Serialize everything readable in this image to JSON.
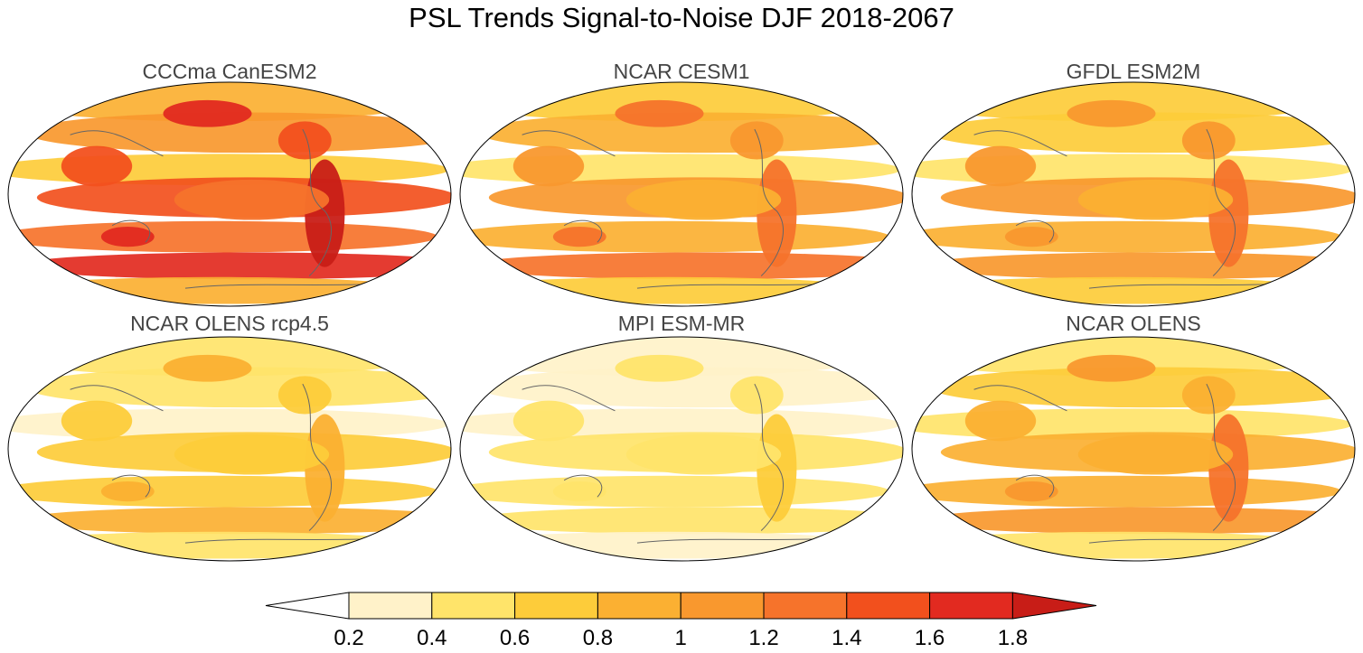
{
  "figure": {
    "title": "PSL Trends Signal-to-Noise DJF 2018-2067"
  },
  "panels": [
    {
      "title": "CCCma CanESM2",
      "intensity": 1.0
    },
    {
      "title": "NCAR CESM1",
      "intensity": 0.72
    },
    {
      "title": "GFDL ESM2M",
      "intensity": 0.68
    },
    {
      "title": "NCAR OLENS rcp4.5",
      "intensity": 0.45
    },
    {
      "title": "MPI ESM-MR",
      "intensity": 0.28
    },
    {
      "title": "NCAR OLENS",
      "intensity": 0.62
    }
  ],
  "colorbar": {
    "levels": [
      "0.2",
      "0.4",
      "0.6",
      "0.8",
      "1",
      "1.2",
      "1.4",
      "1.6",
      "1.8"
    ],
    "colors": [
      "#ffffff",
      "#fff2c9",
      "#ffe46a",
      "#fdcc3a",
      "#fbb032",
      "#f9982e",
      "#f6732b",
      "#f2501d",
      "#e22a20",
      "#c81d17"
    ]
  }
}
